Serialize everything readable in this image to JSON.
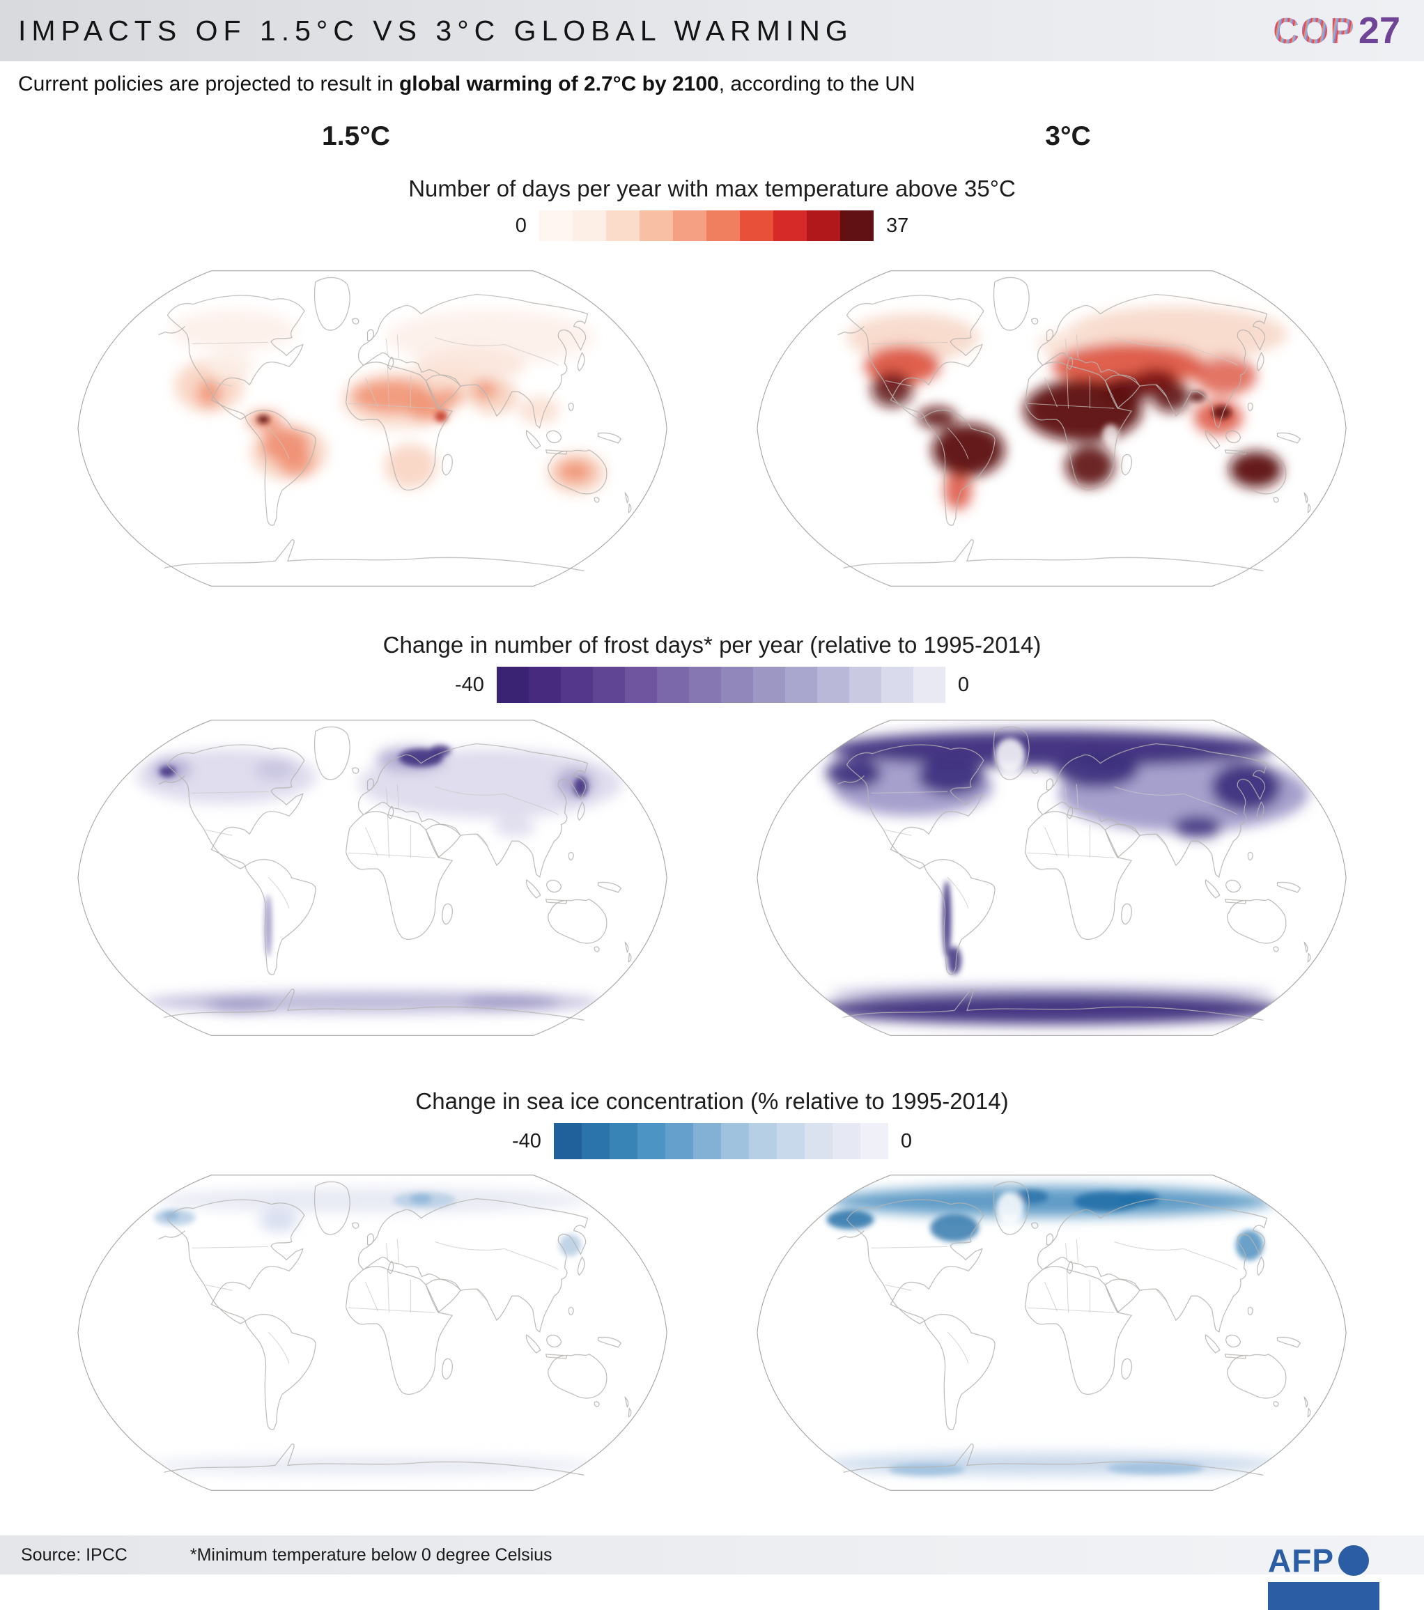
{
  "header": {
    "title": "IMPACTS OF 1.5°C VS 3°C GLOBAL WARMING",
    "logo_cop": "COP",
    "logo_num": "27"
  },
  "subtitle": {
    "pre": "Current policies are projected to result in ",
    "bold": "global warming of 2.7°C by 2100",
    "post": ", according to the UN"
  },
  "columns": {
    "left": "1.5°C",
    "right": "3°C"
  },
  "sections": [
    {
      "title": "Number of days per year with max temperature above 35°C",
      "scale": {
        "min": "0",
        "max": "37",
        "colors": [
          "#fff6f1",
          "#fdeee6",
          "#fbdccb",
          "#f8bfa4",
          "#f5a083",
          "#ef7f5f",
          "#e8503a",
          "#d62a28",
          "#b1181b",
          "#611014"
        ]
      }
    },
    {
      "title": "Change in number of frost days* per year (relative to 1995-2014)",
      "scale": {
        "min": "-40",
        "max": "0",
        "colors": [
          "#3a2372",
          "#472a7e",
          "#54378b",
          "#614595",
          "#6f559f",
          "#7b68aa",
          "#8677b2",
          "#9187bb",
          "#9d97c4",
          "#aaa7cf",
          "#b9b8d9",
          "#c9c9e2",
          "#d9daeb",
          "#e9e9f4"
        ]
      }
    },
    {
      "title": "Change in sea ice concentration (% relative to 1995-2014)",
      "scale": {
        "min": "-40",
        "max": "0",
        "colors": [
          "#20619b",
          "#2a74ab",
          "#3884b7",
          "#4b94c3",
          "#659fcb",
          "#82b1d5",
          "#9fc3de",
          "#b6cfe5",
          "#c9d9ec",
          "#dae2f0",
          "#e6e9f4",
          "#f0f1f8"
        ]
      }
    }
  ],
  "footer": {
    "source": "Source: IPCC",
    "note": "*Minimum temperature below 0 degree Celsius",
    "agency": "AFP"
  }
}
